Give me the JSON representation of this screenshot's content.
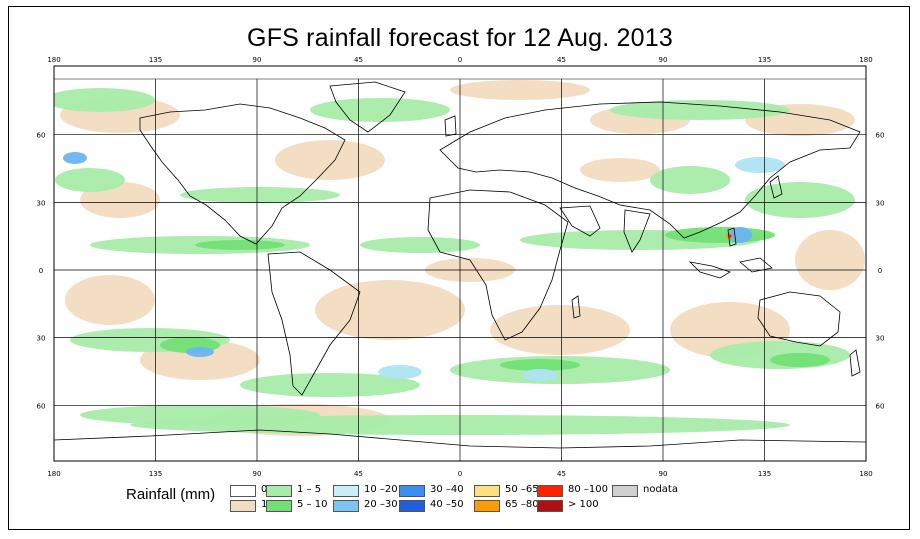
{
  "title": "GFS rainfall forecast for 12 Aug. 2013",
  "map": {
    "projection": "equirectangular",
    "lon_range": [
      -180,
      180
    ],
    "lat_range": [
      -90,
      90
    ],
    "top_lon_labels": [
      "180",
      "135",
      "90",
      "45",
      "0",
      "45",
      "90",
      "135",
      "180"
    ],
    "bottom_lon_labels": [
      "180",
      "135",
      "90",
      "45",
      "0",
      "45",
      "90",
      "135",
      "180"
    ],
    "left_lat_labels": [
      "60",
      "30",
      "0",
      "30",
      "60"
    ],
    "right_lat_labels": [
      "60",
      "30",
      "0",
      "30",
      "60"
    ],
    "colors": {
      "background": "#ffffff",
      "tan": "#f2dcc0",
      "light_green": "#a8ecaa",
      "green": "#72e075",
      "light_blue": "#aee3f2",
      "blue": "#6ab4f2",
      "dark_blue": "#2b6fe8",
      "orange": "#ff9a00",
      "red": "#ff2200",
      "coast": "#000000",
      "grid": "#000000"
    }
  },
  "legend": {
    "title": "Rainfall (mm)",
    "items": [
      {
        "label": "0",
        "color": "#ffffff"
      },
      {
        "label": "1",
        "color": "#f2dcc0"
      },
      {
        "label": "1 – 5",
        "color": "#a8ecaa"
      },
      {
        "label": "5 – 10",
        "color": "#72e075"
      },
      {
        "label": "10 –20",
        "color": "#c9f0fa"
      },
      {
        "label": "20 –30",
        "color": "#7cc4f4"
      },
      {
        "label": "30 –40",
        "color": "#3d8ef2"
      },
      {
        "label": "40 –50",
        "color": "#1f5fe0"
      },
      {
        "label": "50 –65",
        "color": "#ffe080"
      },
      {
        "label": "65 –80",
        "color": "#ff9a00"
      },
      {
        "label": "80 –100",
        "color": "#ff2200"
      },
      {
        "label": "> 100",
        "color": "#b01010"
      },
      {
        "label": "nodata",
        "color": "#d0d0d0"
      }
    ]
  }
}
